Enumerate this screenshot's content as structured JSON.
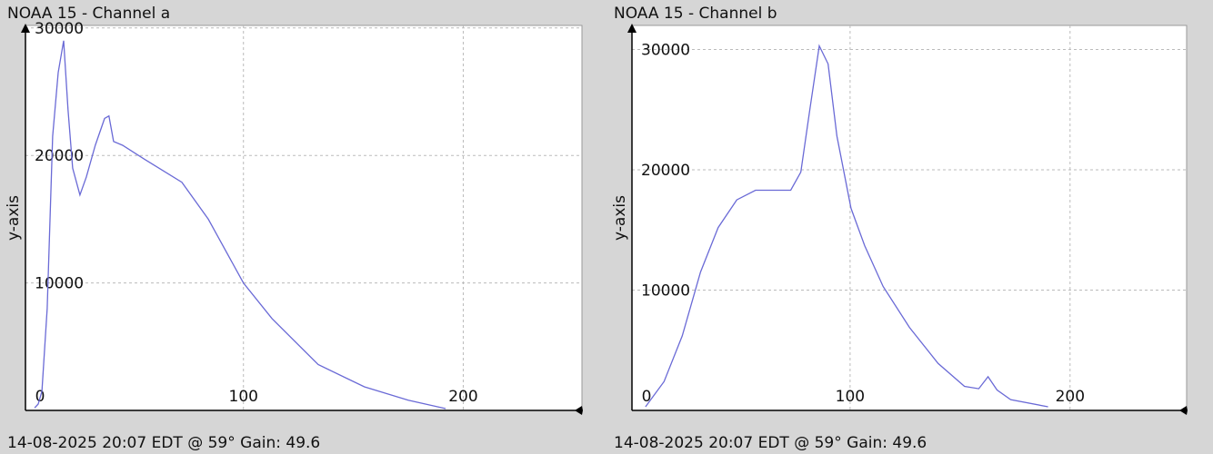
{
  "chart_data": [
    {
      "type": "line",
      "title": "NOAA 15 - Channel a",
      "footer": "14-08-2025 20:07 EDT @ 59° Gain: 49.6",
      "y_label": "y-axis",
      "xlim": [
        0,
        254
      ],
      "ylim": [
        0,
        30200
      ],
      "xticks": [
        0,
        100,
        200
      ],
      "yticks": [
        10000,
        20000,
        30000
      ],
      "grid": true,
      "series": [
        {
          "color": "#6a6ad6",
          "x": [
            5,
            6.6,
            8.3,
            10.7,
            13.2,
            15.7,
            18.2,
            20.2,
            22.3,
            25.6,
            28.5,
            32.6,
            36.8,
            38.8,
            40.9,
            45,
            55,
            72,
            84,
            100,
            113,
            134,
            155,
            175,
            192
          ],
          "values": [
            200,
            500,
            1500,
            8000,
            21500,
            26500,
            29000,
            23600,
            19000,
            16900,
            18300,
            20800,
            22900,
            23100,
            21100,
            20800,
            19700,
            17900,
            15000,
            10000,
            7200,
            3600,
            1850,
            800,
            140
          ]
        }
      ]
    },
    {
      "type": "line",
      "title": "NOAA 15 - Channel b",
      "footer": "14-08-2025 20:07 EDT @ 59° Gain: 49.6",
      "y_label": "y-axis",
      "xlim": [
        0,
        253
      ],
      "ylim": [
        0,
        32000
      ],
      "xticks": [
        0,
        100,
        200
      ],
      "yticks": [
        10000,
        20000,
        30000
      ],
      "grid": true,
      "series": [
        {
          "color": "#6a6ad6",
          "x": [
            7,
            15.4,
            23.7,
            32,
            40,
            48.5,
            57,
            65,
            73,
            77.6,
            81.7,
            86,
            90,
            94,
            100.4,
            106.6,
            115,
            127,
            140,
            152,
            158.5,
            162.7,
            166.8,
            173,
            190
          ],
          "values": [
            300,
            2400,
            6200,
            11500,
            15200,
            17500,
            18300,
            18300,
            18300,
            19800,
            25000,
            30300,
            28800,
            22800,
            16800,
            13700,
            10300,
            6900,
            3900,
            2000,
            1800,
            2800,
            1700,
            900,
            300
          ]
        }
      ]
    }
  ]
}
